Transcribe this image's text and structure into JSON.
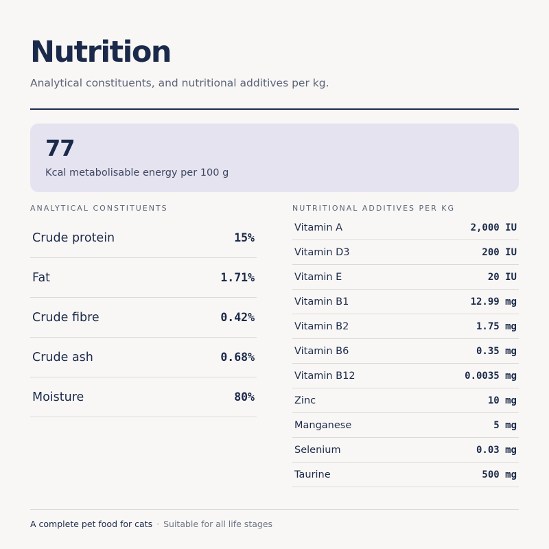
{
  "header": {
    "title": "Nutrition",
    "subtitle": "Analytical constituents, and nutritional additives per kg."
  },
  "energy": {
    "value": "77",
    "label": "Kcal metabolisable energy per 100 g"
  },
  "analytical": {
    "heading": "Analytical constituents",
    "items": [
      {
        "name": "Crude protein",
        "value": "15%"
      },
      {
        "name": "Fat",
        "value": "1.71%"
      },
      {
        "name": "Crude fibre",
        "value": "0.42%"
      },
      {
        "name": "Crude ash",
        "value": "0.68%"
      },
      {
        "name": "Moisture",
        "value": "80%"
      }
    ]
  },
  "additives": {
    "heading": "Nutritional additives per kg",
    "items": [
      {
        "name": "Vitamin A",
        "value": "2,000 IU"
      },
      {
        "name": "Vitamin D3",
        "value": "200 IU"
      },
      {
        "name": "Vitamin E",
        "value": "20 IU"
      },
      {
        "name": "Vitamin B1",
        "value": "12.99 mg"
      },
      {
        "name": "Vitamin B2",
        "value": "1.75 mg"
      },
      {
        "name": "Vitamin B6",
        "value": "0.35 mg"
      },
      {
        "name": "Vitamin B12",
        "value": "0.0035 mg"
      },
      {
        "name": "Zinc",
        "value": "10 mg"
      },
      {
        "name": "Manganese",
        "value": "5 mg"
      },
      {
        "name": "Selenium",
        "value": "0.03 mg"
      },
      {
        "name": "Taurine",
        "value": "500 mg"
      }
    ]
  },
  "footer": {
    "main": "A complete pet food for cats",
    "separator": "·",
    "sub": "Suitable for all life stages"
  },
  "colors": {
    "background": "#f8f7f5",
    "ink": "#1b2a4a",
    "muted": "#5a6478",
    "energy_panel": "#e6e3f1",
    "divider": "#dcdad6"
  }
}
